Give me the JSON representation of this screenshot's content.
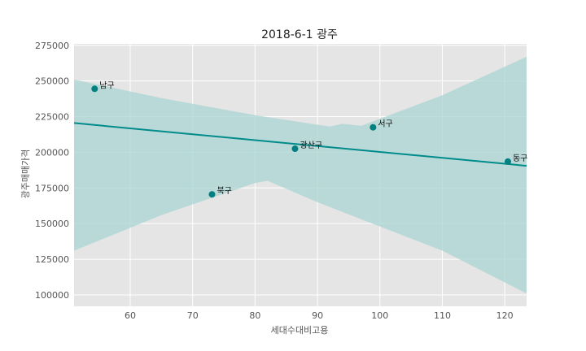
{
  "chart_data": {
    "type": "scatter",
    "title": "2018-6-1 광주",
    "xlabel": "세대수대비고용",
    "ylabel": "광주매매가격",
    "xlim": [
      51,
      123.5
    ],
    "ylim": [
      92000,
      276000
    ],
    "xticks": [
      60,
      70,
      80,
      90,
      100,
      110,
      120
    ],
    "yticks": [
      100000,
      125000,
      150000,
      175000,
      200000,
      225000,
      250000,
      275000
    ],
    "grid": true,
    "points": [
      {
        "label": "남구",
        "x": 54.3,
        "y": 244500
      },
      {
        "label": "북구",
        "x": 73.1,
        "y": 170500
      },
      {
        "label": "광산구",
        "x": 86.4,
        "y": 202500
      },
      {
        "label": "서구",
        "x": 98.9,
        "y": 217500
      },
      {
        "label": "동구",
        "x": 120.5,
        "y": 193500
      }
    ],
    "regression": {
      "x": [
        51,
        123.5
      ],
      "y": [
        220500,
        190500
      ]
    },
    "confidence_band": {
      "upper": [
        [
          51,
          251000
        ],
        [
          65,
          238000
        ],
        [
          80,
          226000
        ],
        [
          92,
          218000
        ],
        [
          94,
          220000
        ],
        [
          97,
          218500
        ],
        [
          110,
          240000
        ],
        [
          123.5,
          267000
        ]
      ],
      "lower": [
        [
          51,
          131000
        ],
        [
          65,
          156000
        ],
        [
          80,
          178500
        ],
        [
          82,
          180000
        ],
        [
          90,
          165000
        ],
        [
          100,
          148000
        ],
        [
          110,
          131000
        ],
        [
          123.5,
          101000
        ]
      ]
    },
    "colors": {
      "point": "#008080",
      "line": "#008b8b",
      "band": "#a8d4d2",
      "background": "#e5e5e5",
      "grid": "#ffffff"
    }
  }
}
